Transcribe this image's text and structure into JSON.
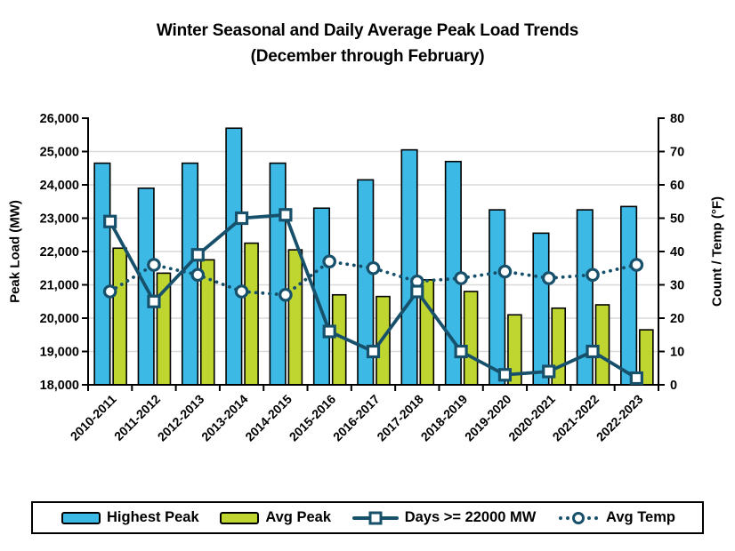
{
  "chart_data": {
    "type": "combo_bar_line",
    "title": "Winter Seasonal and Daily Average Peak Load Trends",
    "subtitle": "(December through February)",
    "categories": [
      "2010-2011",
      "2011-2012",
      "2012-2013",
      "2013-2014",
      "2014-2015",
      "2015-2016",
      "2016-2017",
      "2017-2018",
      "2018-2019",
      "2019-2020",
      "2020-2021",
      "2021-2022",
      "2022-2023"
    ],
    "series": [
      {
        "name": "Highest Peak",
        "type": "bar",
        "axis": "left",
        "color": "#3DB9E5",
        "values": [
          24650,
          23900,
          24650,
          25700,
          24650,
          23300,
          24150,
          25050,
          24700,
          23250,
          22550,
          23250,
          23350
        ]
      },
      {
        "name": "Avg Peak",
        "type": "bar",
        "axis": "left",
        "color": "#BFD630",
        "values": [
          22100,
          21350,
          21750,
          22250,
          22050,
          20700,
          20650,
          21150,
          20800,
          20100,
          20300,
          20400,
          19650
        ]
      },
      {
        "name": "Days >= 22000 MW",
        "type": "line",
        "line_style": "solid",
        "marker": "square",
        "axis": "right",
        "color": "#17506B",
        "values": [
          49,
          25,
          39,
          50,
          51,
          16,
          10,
          28,
          10,
          3,
          4,
          10,
          2
        ]
      },
      {
        "name": "Avg Temp",
        "type": "line",
        "line_style": "dotted",
        "marker": "circle",
        "axis": "right",
        "color": "#17506B",
        "values": [
          28,
          36,
          33,
          28,
          27,
          37,
          35,
          31,
          32,
          34,
          32,
          33,
          36
        ]
      }
    ],
    "left_axis": {
      "label": "Peak Load (MW)",
      "min": 18000,
      "max": 26000,
      "step": 1000,
      "tick_labels": [
        "18,000",
        "19,000",
        "20,000",
        "21,000",
        "22,000",
        "23,000",
        "24,000",
        "25,000",
        "26,000"
      ]
    },
    "right_axis": {
      "label": "Count / Temp (°F)",
      "min": 0,
      "max": 80,
      "step": 10,
      "tick_labels": [
        "0",
        "10",
        "20",
        "30",
        "40",
        "50",
        "60",
        "70",
        "80"
      ]
    },
    "grid": true,
    "legend_position": "bottom",
    "colors": {
      "grid": "#D9D9D9",
      "axis": "#000000",
      "bar_outline": "#000000",
      "marker_fill": "#FFFFFF",
      "background": "#FFFFFF"
    }
  }
}
